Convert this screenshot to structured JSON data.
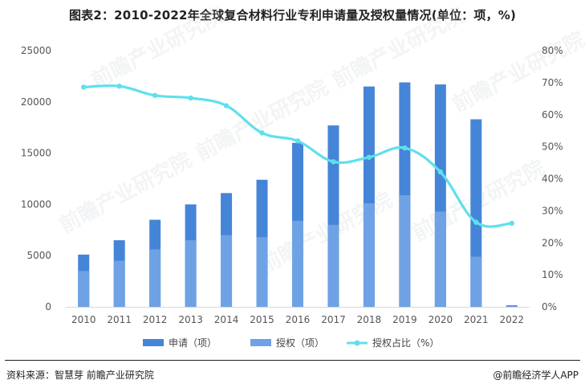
{
  "title": "图表2：2010-2022年全球复合材料行业专利申请量及授权量情况(单位：项，%)",
  "source_text": "资料来源：智慧芽 前瞻产业研究院",
  "brand_text": "@前瞻经济学人APP",
  "watermark_text": "前瞻产业研究院",
  "colors": {
    "application": "#4585d8",
    "granted": "#6fa2e4",
    "ratio": "#5fe0ec",
    "axis": "#d9d9d9"
  },
  "chart_data": {
    "type": "bar",
    "categories": [
      "2010",
      "2011",
      "2012",
      "2013",
      "2014",
      "2015",
      "2016",
      "2017",
      "2018",
      "2019",
      "2020",
      "2021",
      "2022"
    ],
    "series": [
      {
        "name": "申请（项）",
        "type": "bar",
        "axis": "left",
        "values": [
          5100,
          6500,
          8500,
          10000,
          11100,
          12400,
          16000,
          17700,
          21500,
          21900,
          21700,
          18300,
          150
        ]
      },
      {
        "name": "授权（项）",
        "type": "bar",
        "axis": "left",
        "values": [
          3500,
          4500,
          5600,
          6500,
          7000,
          6800,
          8400,
          8000,
          10100,
          10900,
          9300,
          4900,
          50
        ]
      },
      {
        "name": "授权占比（%）",
        "type": "line",
        "axis": "right",
        "values": [
          68.6,
          68.9,
          66.0,
          65.2,
          62.8,
          54.3,
          51.8,
          45.3,
          46.7,
          49.6,
          42.1,
          26.4,
          26.1
        ]
      }
    ],
    "y_left": {
      "min": 0,
      "max": 25000,
      "ticks": [
        "0",
        "5000",
        "10000",
        "15000",
        "20000",
        "25000"
      ]
    },
    "y_right": {
      "min": 0,
      "max": 80,
      "ticks": [
        "0%",
        "10%",
        "20%",
        "30%",
        "40%",
        "50%",
        "60%",
        "70%",
        "80%"
      ]
    },
    "legend_position": "bottom",
    "grid": false
  }
}
